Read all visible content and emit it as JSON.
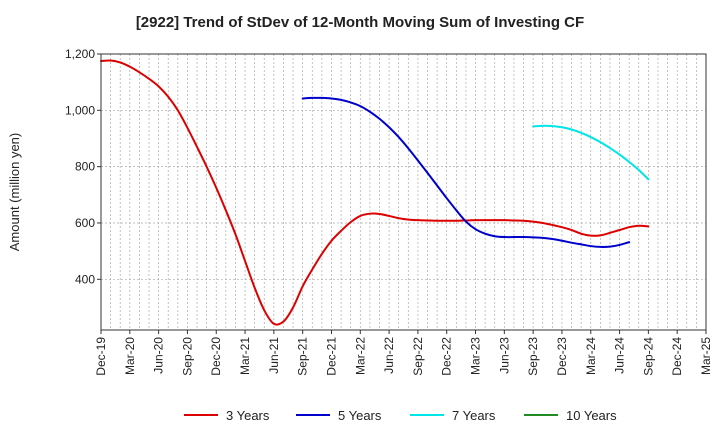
{
  "chart_data": {
    "type": "line",
    "title": "[2922]  Trend of StDev of 12-Month Moving Sum of Investing CF",
    "xlabel": "",
    "ylabel": "Amount (million yen)",
    "ylim": [
      220,
      1200
    ],
    "yticks": [
      400,
      600,
      800,
      "1,000",
      "1,200"
    ],
    "ytick_values": [
      400,
      600,
      800,
      1000,
      1200
    ],
    "grid": true,
    "legend_position": "bottom",
    "x_categories": [
      "Dec-19",
      "Jan-20",
      "Feb-20",
      "Mar-20",
      "Apr-20",
      "May-20",
      "Jun-20",
      "Jul-20",
      "Aug-20",
      "Sep-20",
      "Oct-20",
      "Nov-20",
      "Dec-20",
      "Jan-21",
      "Feb-21",
      "Mar-21",
      "Apr-21",
      "May-21",
      "Jun-21",
      "Jul-21",
      "Aug-21",
      "Sep-21",
      "Oct-21",
      "Nov-21",
      "Dec-21",
      "Jan-22",
      "Feb-22",
      "Mar-22",
      "Apr-22",
      "May-22",
      "Jun-22",
      "Jul-22",
      "Aug-22",
      "Sep-22",
      "Oct-22",
      "Nov-22",
      "Dec-22",
      "Jan-23",
      "Feb-23",
      "Mar-23",
      "Apr-23",
      "May-23",
      "Jun-23",
      "Jul-23",
      "Aug-23",
      "Sep-23",
      "Oct-23",
      "Nov-23",
      "Dec-23",
      "Jan-24",
      "Feb-24",
      "Mar-24",
      "Apr-24",
      "May-24",
      "Jun-24",
      "Jul-24",
      "Aug-24",
      "Sep-24",
      "Oct-24",
      "Nov-24",
      "Dec-24",
      "Jan-25",
      "Feb-25",
      "Mar-25"
    ],
    "x_tick_labels": [
      "Dec-19",
      "Mar-20",
      "Jun-20",
      "Sep-20",
      "Dec-20",
      "Mar-21",
      "Jun-21",
      "Sep-21",
      "Dec-21",
      "Mar-22",
      "Jun-22",
      "Sep-22",
      "Dec-22",
      "Mar-23",
      "Jun-23",
      "Sep-23",
      "Dec-23",
      "Mar-24",
      "Jun-24",
      "Sep-24",
      "Dec-24",
      "Mar-25"
    ],
    "series": [
      {
        "name": "3 Years",
        "color": "#dd0000",
        "start_index": 0,
        "values": [
          1175,
          1177,
          1170,
          1155,
          1135,
          1112,
          1085,
          1048,
          1000,
          938,
          870,
          800,
          725,
          645,
          560,
          465,
          370,
          290,
          242,
          250,
          300,
          375,
          435,
          490,
          537,
          572,
          603,
          625,
          633,
          632,
          625,
          617,
          612,
          610,
          609,
          608,
          608,
          608,
          609,
          610,
          610,
          610,
          610,
          609,
          608,
          605,
          600,
          593,
          585,
          575,
          562,
          555,
          556,
          565,
          575,
          585,
          590,
          588
        ]
      },
      {
        "name": "5 Years",
        "color": "#0000cc",
        "start_index": 21,
        "values": [
          1042,
          1044,
          1044,
          1042,
          1037,
          1028,
          1015,
          995,
          970,
          940,
          905,
          865,
          822,
          778,
          733,
          688,
          645,
          605,
          578,
          562,
          553,
          550,
          550,
          550,
          549,
          547,
          543,
          537,
          530,
          524,
          518,
          515,
          516,
          522,
          532
        ]
      },
      {
        "name": "7 Years",
        "color": "#00e5e5",
        "start_index": 45,
        "values": [
          943,
          945,
          944,
          940,
          932,
          920,
          905,
          887,
          866,
          843,
          817,
          788,
          755
        ]
      },
      {
        "name": "10 Years",
        "color": "#228b22",
        "start_index": 0,
        "values": []
      }
    ]
  }
}
